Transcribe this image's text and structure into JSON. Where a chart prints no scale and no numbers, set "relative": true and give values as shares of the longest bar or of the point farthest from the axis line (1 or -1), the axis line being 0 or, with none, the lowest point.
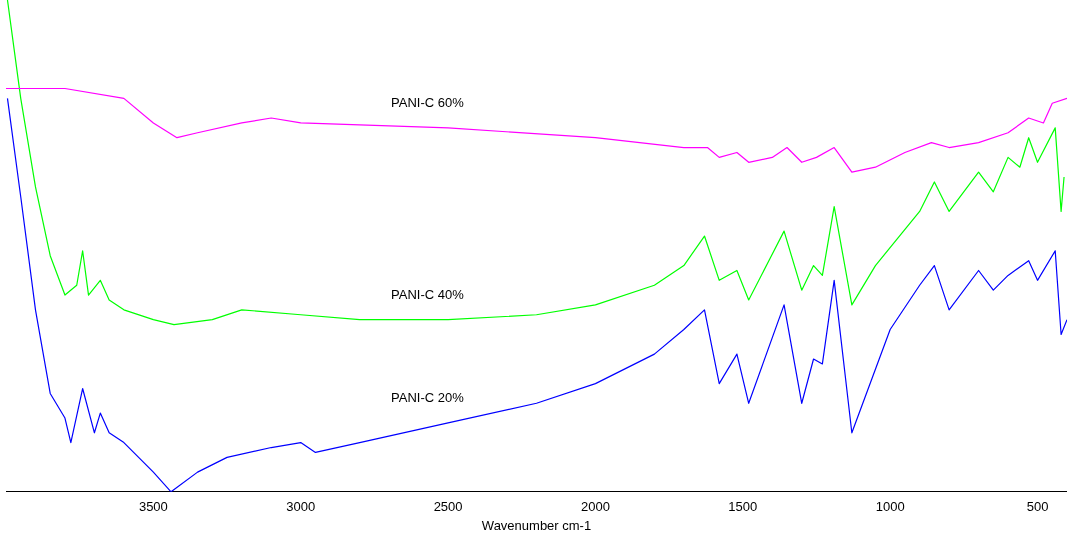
{
  "chart_data": {
    "type": "line",
    "relative": true,
    "xlabel": "Wavenumber cm-1",
    "xlim": [
      4000,
      400
    ],
    "xticks": [
      3500,
      3000,
      2500,
      2000,
      1500,
      1000,
      500
    ],
    "legend": false,
    "grid": false,
    "marker": "none",
    "line_style": "solid",
    "series": [
      {
        "name": "PANI-C 60%",
        "color": "#ff00ff",
        "x": [
          4000,
          3800,
          3600,
          3500,
          3420,
          3350,
          3200,
          3100,
          3000,
          2500,
          2000,
          1700,
          1620,
          1580,
          1520,
          1480,
          1400,
          1350,
          1300,
          1250,
          1190,
          1130,
          1050,
          950,
          860,
          800,
          700,
          600,
          530,
          480,
          450,
          400
        ],
        "values": [
          0.82,
          0.82,
          0.8,
          0.75,
          0.72,
          0.73,
          0.75,
          0.76,
          0.75,
          0.74,
          0.72,
          0.7,
          0.7,
          0.68,
          0.69,
          0.67,
          0.68,
          0.7,
          0.67,
          0.68,
          0.7,
          0.65,
          0.66,
          0.69,
          0.71,
          0.7,
          0.71,
          0.73,
          0.76,
          0.75,
          0.79,
          0.8
        ]
      },
      {
        "name": "PANI-C 40%",
        "color": "#00ff00",
        "x": [
          3995,
          3950,
          3900,
          3850,
          3800,
          3760,
          3740,
          3720,
          3680,
          3650,
          3600,
          3500,
          3430,
          3300,
          3200,
          3000,
          2800,
          2500,
          2200,
          2000,
          1800,
          1700,
          1630,
          1580,
          1520,
          1480,
          1360,
          1300,
          1260,
          1230,
          1190,
          1130,
          1050,
          900,
          850,
          800,
          700,
          650,
          600,
          560,
          530,
          500,
          440,
          420,
          410
        ],
        "values": [
          1.0,
          0.8,
          0.62,
          0.48,
          0.4,
          0.42,
          0.49,
          0.4,
          0.43,
          0.39,
          0.37,
          0.35,
          0.34,
          0.35,
          0.37,
          0.36,
          0.35,
          0.35,
          0.36,
          0.38,
          0.42,
          0.46,
          0.52,
          0.43,
          0.45,
          0.39,
          0.53,
          0.41,
          0.46,
          0.44,
          0.58,
          0.38,
          0.46,
          0.57,
          0.63,
          0.57,
          0.65,
          0.61,
          0.68,
          0.66,
          0.72,
          0.67,
          0.74,
          0.57,
          0.64
        ]
      },
      {
        "name": "PANI-C 20%",
        "color": "#0000ff",
        "x": [
          3995,
          3950,
          3900,
          3850,
          3800,
          3780,
          3740,
          3700,
          3680,
          3650,
          3600,
          3500,
          3440,
          3350,
          3250,
          3100,
          3000,
          2950,
          2800,
          2500,
          2200,
          2000,
          1800,
          1700,
          1630,
          1580,
          1520,
          1480,
          1360,
          1300,
          1260,
          1230,
          1190,
          1130,
          1000,
          900,
          850,
          800,
          700,
          650,
          600,
          530,
          500,
          440,
          420,
          400
        ],
        "values": [
          0.8,
          0.6,
          0.37,
          0.2,
          0.15,
          0.1,
          0.21,
          0.12,
          0.16,
          0.12,
          0.1,
          0.04,
          0.0,
          0.04,
          0.07,
          0.09,
          0.1,
          0.08,
          0.1,
          0.14,
          0.18,
          0.22,
          0.28,
          0.33,
          0.37,
          0.22,
          0.28,
          0.18,
          0.38,
          0.18,
          0.27,
          0.26,
          0.43,
          0.12,
          0.33,
          0.42,
          0.46,
          0.37,
          0.45,
          0.41,
          0.44,
          0.47,
          0.43,
          0.49,
          0.32,
          0.35
        ]
      }
    ]
  }
}
